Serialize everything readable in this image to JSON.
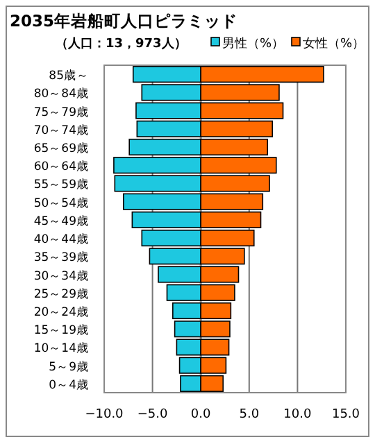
{
  "chart_data": {
    "type": "bar",
    "orientation": "horizontal",
    "stacked": true,
    "title": "2035年岩船町人口ピラミッド",
    "subtitle": "（人口：13，973人）",
    "categories": [
      "85歳～",
      "80～84歳",
      "75～79歳",
      "70～74歳",
      "65～69歳",
      "60～64歳",
      "55～59歳",
      "50～54歳",
      "45～49歳",
      "40～44歳",
      "35～39歳",
      "30～34歳",
      "25～29歳",
      "20～24歳",
      "15～19歳",
      "10～14歳",
      "5～9歳",
      "0～4歳"
    ],
    "series": [
      {
        "name": "男性（%）",
        "color": "#1ec8e0",
        "values": [
          -7.0,
          -6.1,
          -6.7,
          -6.6,
          -7.4,
          -9.0,
          -8.9,
          -8.0,
          -7.1,
          -6.1,
          -5.3,
          -4.4,
          -3.5,
          -2.9,
          -2.7,
          -2.5,
          -2.2,
          -2.1
        ]
      },
      {
        "name": "女性（%）",
        "color": "#ff6a00",
        "values": [
          12.7,
          8.1,
          8.5,
          7.4,
          6.9,
          7.8,
          7.1,
          6.4,
          6.2,
          5.5,
          4.5,
          3.9,
          3.5,
          3.1,
          3.0,
          2.9,
          2.6,
          2.3
        ]
      }
    ],
    "xlim": [
      -10,
      15
    ],
    "xticks": [
      {
        "value": -10,
        "label": "−10.0"
      },
      {
        "value": -5,
        "label": "−5.0"
      },
      {
        "value": 0,
        "label": "0.0"
      },
      {
        "value": 5,
        "label": "5.0"
      },
      {
        "value": 10,
        "label": "10.0"
      },
      {
        "value": 15,
        "label": "15.0"
      }
    ],
    "grid": "x",
    "legend": "top right"
  }
}
